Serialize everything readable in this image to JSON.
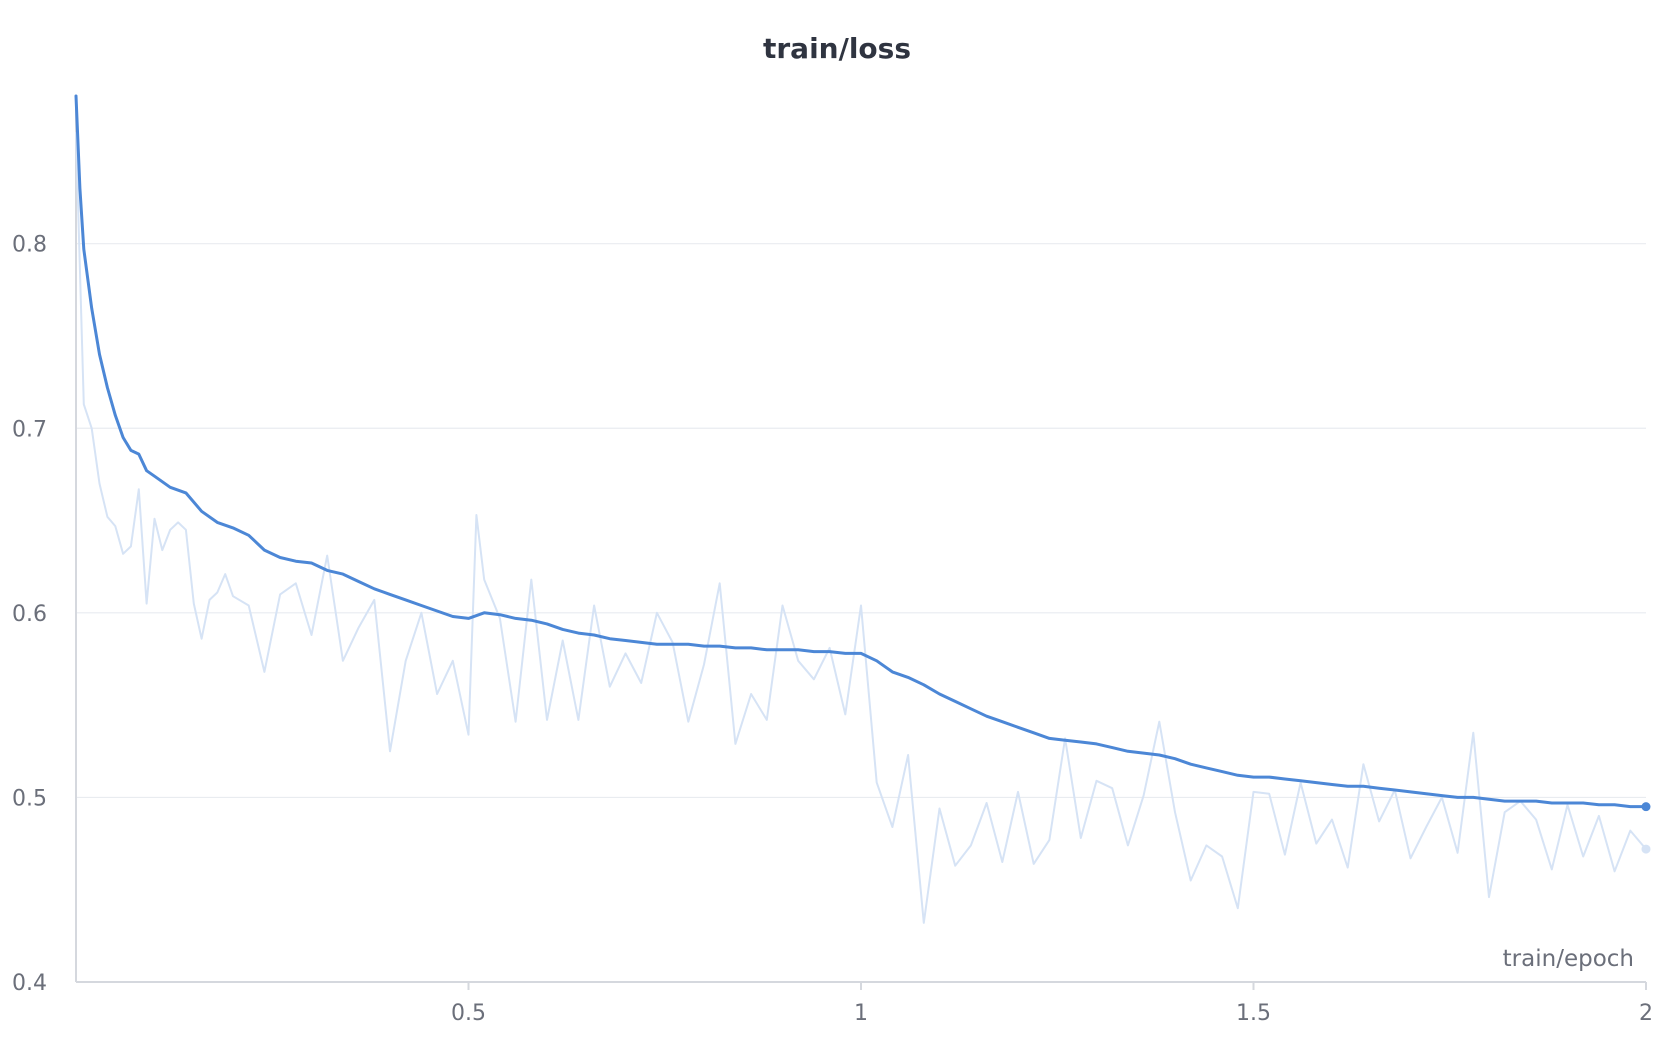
{
  "chart_data": {
    "type": "line",
    "title": "train/loss",
    "xlabel": "train/epoch",
    "ylabel": "",
    "xlim": [
      0,
      2
    ],
    "ylim": [
      0.4,
      0.88
    ],
    "x_ticks": [
      {
        "value": 0.5,
        "label": "0.5"
      },
      {
        "value": 1,
        "label": "1"
      },
      {
        "value": 1.5,
        "label": "1.5"
      },
      {
        "value": 2,
        "label": "2"
      }
    ],
    "y_ticks": [
      {
        "value": 0.4,
        "label": "0.4"
      },
      {
        "value": 0.5,
        "label": "0.5"
      },
      {
        "value": 0.6,
        "label": "0.6"
      },
      {
        "value": 0.7,
        "label": "0.7"
      },
      {
        "value": 0.8,
        "label": "0.8"
      }
    ],
    "grid": true,
    "colors": {
      "smoothed": "#4c87d6",
      "raw": "#d6e3f5",
      "grid": "#e9ecf0",
      "axis": "#d5d8de"
    },
    "series": [
      {
        "style": "raw",
        "x": [
          0.0,
          0.01,
          0.02,
          0.03,
          0.04,
          0.05,
          0.06,
          0.07,
          0.08,
          0.09,
          0.1,
          0.11,
          0.12,
          0.13,
          0.14,
          0.15,
          0.16,
          0.17,
          0.18,
          0.19,
          0.2,
          0.22,
          0.24,
          0.26,
          0.28,
          0.3,
          0.32,
          0.34,
          0.36,
          0.38,
          0.4,
          0.42,
          0.44,
          0.46,
          0.48,
          0.5,
          0.51,
          0.52,
          0.54,
          0.56,
          0.58,
          0.6,
          0.62,
          0.64,
          0.66,
          0.68,
          0.7,
          0.72,
          0.74,
          0.76,
          0.78,
          0.8,
          0.82,
          0.84,
          0.86,
          0.88,
          0.9,
          0.92,
          0.94,
          0.96,
          0.98,
          1.0,
          1.02,
          1.04,
          1.06,
          1.08,
          1.1,
          1.12,
          1.14,
          1.16,
          1.18,
          1.2,
          1.22,
          1.24,
          1.26,
          1.28,
          1.3,
          1.32,
          1.34,
          1.36,
          1.38,
          1.4,
          1.42,
          1.44,
          1.46,
          1.48,
          1.5,
          1.52,
          1.54,
          1.56,
          1.58,
          1.6,
          1.62,
          1.64,
          1.66,
          1.68,
          1.7,
          1.72,
          1.74,
          1.76,
          1.78,
          1.8,
          1.82,
          1.84,
          1.86,
          1.88,
          1.9,
          1.92,
          1.94,
          1.96,
          1.98,
          2.0
        ],
        "values": [
          0.86,
          0.713,
          0.7,
          0.67,
          0.652,
          0.647,
          0.632,
          0.636,
          0.667,
          0.605,
          0.651,
          0.634,
          0.645,
          0.649,
          0.645,
          0.605,
          0.586,
          0.607,
          0.611,
          0.621,
          0.609,
          0.604,
          0.568,
          0.61,
          0.616,
          0.588,
          0.631,
          0.574,
          0.592,
          0.607,
          0.525,
          0.574,
          0.6,
          0.556,
          0.574,
          0.534,
          0.653,
          0.618,
          0.597,
          0.541,
          0.618,
          0.542,
          0.585,
          0.542,
          0.604,
          0.56,
          0.578,
          0.562,
          0.6,
          0.584,
          0.541,
          0.572,
          0.616,
          0.529,
          0.556,
          0.542,
          0.604,
          0.574,
          0.564,
          0.581,
          0.545,
          0.604,
          0.508,
          0.484,
          0.523,
          0.432,
          0.494,
          0.463,
          0.474,
          0.497,
          0.465,
          0.503,
          0.464,
          0.477,
          0.532,
          0.478,
          0.509,
          0.505,
          0.474,
          0.501,
          0.541,
          0.492,
          0.455,
          0.474,
          0.468,
          0.44,
          0.503,
          0.502,
          0.469,
          0.508,
          0.475,
          0.488,
          0.462,
          0.518,
          0.487,
          0.504,
          0.467,
          0.484,
          0.5,
          0.47,
          0.535,
          0.446,
          0.492,
          0.498,
          0.488,
          0.461,
          0.496,
          0.468,
          0.49,
          0.46,
          0.482,
          0.472
        ]
      },
      {
        "style": "smoothed",
        "x": [
          0.0,
          0.005,
          0.01,
          0.02,
          0.03,
          0.04,
          0.05,
          0.06,
          0.07,
          0.08,
          0.09,
          0.1,
          0.12,
          0.14,
          0.16,
          0.18,
          0.2,
          0.22,
          0.24,
          0.26,
          0.28,
          0.3,
          0.32,
          0.34,
          0.36,
          0.38,
          0.4,
          0.42,
          0.44,
          0.46,
          0.48,
          0.5,
          0.52,
          0.54,
          0.56,
          0.58,
          0.6,
          0.62,
          0.64,
          0.66,
          0.68,
          0.7,
          0.72,
          0.74,
          0.76,
          0.78,
          0.8,
          0.82,
          0.84,
          0.86,
          0.88,
          0.9,
          0.92,
          0.94,
          0.96,
          0.98,
          1.0,
          1.02,
          1.04,
          1.06,
          1.08,
          1.1,
          1.12,
          1.14,
          1.16,
          1.18,
          1.2,
          1.22,
          1.24,
          1.26,
          1.28,
          1.3,
          1.32,
          1.34,
          1.36,
          1.38,
          1.4,
          1.42,
          1.44,
          1.46,
          1.48,
          1.5,
          1.52,
          1.54,
          1.56,
          1.58,
          1.6,
          1.62,
          1.64,
          1.66,
          1.68,
          1.7,
          1.72,
          1.74,
          1.76,
          1.78,
          1.8,
          1.82,
          1.84,
          1.86,
          1.88,
          1.9,
          1.92,
          1.94,
          1.96,
          1.98,
          2.0
        ],
        "values": [
          0.88,
          0.83,
          0.797,
          0.765,
          0.74,
          0.722,
          0.707,
          0.695,
          0.688,
          0.686,
          0.677,
          0.674,
          0.668,
          0.665,
          0.655,
          0.649,
          0.646,
          0.642,
          0.634,
          0.63,
          0.628,
          0.627,
          0.623,
          0.621,
          0.617,
          0.613,
          0.61,
          0.607,
          0.604,
          0.601,
          0.598,
          0.597,
          0.6,
          0.599,
          0.597,
          0.596,
          0.594,
          0.591,
          0.589,
          0.588,
          0.586,
          0.585,
          0.584,
          0.583,
          0.583,
          0.583,
          0.582,
          0.582,
          0.581,
          0.581,
          0.58,
          0.58,
          0.58,
          0.579,
          0.579,
          0.578,
          0.578,
          0.574,
          0.568,
          0.565,
          0.561,
          0.556,
          0.552,
          0.548,
          0.544,
          0.541,
          0.538,
          0.535,
          0.532,
          0.531,
          0.53,
          0.529,
          0.527,
          0.525,
          0.524,
          0.523,
          0.521,
          0.518,
          0.516,
          0.514,
          0.512,
          0.511,
          0.511,
          0.51,
          0.509,
          0.508,
          0.507,
          0.506,
          0.506,
          0.505,
          0.504,
          0.503,
          0.502,
          0.501,
          0.5,
          0.5,
          0.499,
          0.498,
          0.498,
          0.498,
          0.497,
          0.497,
          0.497,
          0.496,
          0.496,
          0.495,
          0.495
        ]
      }
    ]
  }
}
